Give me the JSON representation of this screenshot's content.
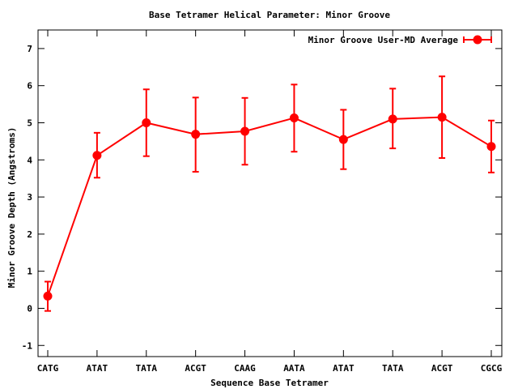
{
  "chart_data": {
    "type": "line",
    "title": "Base Tetramer Helical Parameter: Minor Groove",
    "xlabel": "Sequence Base Tetramer",
    "ylabel": "Minor Groove Depth (Angstroms)",
    "categories": [
      "CATG",
      "ATAT",
      "TATA",
      "ACGT",
      "CAAG",
      "AATA",
      "ATAT",
      "TATA",
      "ACGT",
      "CGCG"
    ],
    "ylim": [
      -1.3,
      7.5
    ],
    "yticks": [
      -1,
      0,
      1,
      2,
      3,
      4,
      5,
      6,
      7
    ],
    "grid": false,
    "legend_position": "top-right",
    "series": [
      {
        "name": "Minor Groove User-MD Average",
        "color": "#ff0000",
        "values": [
          0.33,
          4.12,
          5.0,
          4.69,
          4.77,
          5.13,
          4.55,
          5.1,
          5.15,
          4.36
        ],
        "err_low": [
          -0.07,
          3.52,
          4.1,
          3.68,
          3.87,
          4.22,
          3.75,
          4.31,
          4.05,
          3.66
        ],
        "err_high": [
          0.72,
          4.73,
          5.9,
          5.68,
          5.67,
          6.03,
          5.35,
          5.92,
          6.25,
          5.06
        ]
      }
    ]
  }
}
